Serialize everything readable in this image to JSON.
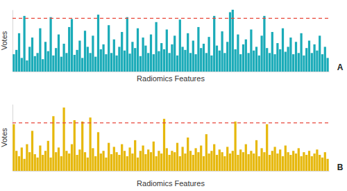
{
  "chart_data": [
    {
      "type": "bar",
      "annotation": "A",
      "xlabel": "Radiomics Features",
      "ylabel": "Votes",
      "color": "#1aabb8",
      "tick_labels": false,
      "threshold": 86,
      "xlim": [
        0.5,
        120.5
      ],
      "ylim": [
        0,
        100
      ],
      "x": [
        1,
        2,
        3,
        4,
        5,
        6,
        7,
        8,
        9,
        10,
        11,
        12,
        13,
        14,
        15,
        16,
        17,
        18,
        19,
        20,
        21,
        22,
        23,
        24,
        25,
        26,
        27,
        28,
        29,
        30,
        31,
        32,
        33,
        34,
        35,
        36,
        37,
        38,
        39,
        40,
        41,
        42,
        43,
        44,
        45,
        46,
        47,
        48,
        49,
        50,
        51,
        52,
        53,
        54,
        55,
        56,
        57,
        58,
        59,
        60,
        61,
        62,
        63,
        64,
        65,
        66,
        67,
        68,
        69,
        70,
        71,
        72,
        73,
        74,
        75,
        76,
        77,
        78,
        79,
        80,
        81,
        82,
        83,
        84,
        85,
        86,
        87,
        88,
        89,
        90,
        91,
        92,
        93,
        94,
        95,
        96,
        97,
        98,
        99,
        100,
        101,
        102,
        103,
        104,
        105,
        106,
        107,
        108,
        109,
        110,
        111,
        112,
        113,
        114,
        115,
        116,
        117,
        118,
        119,
        120
      ],
      "values": [
        28,
        35,
        62,
        22,
        90,
        18,
        40,
        55,
        25,
        30,
        70,
        20,
        48,
        33,
        88,
        26,
        38,
        60,
        24,
        45,
        30,
        72,
        85,
        27,
        35,
        50,
        22,
        66,
        40,
        30,
        58,
        24,
        92,
        36,
        44,
        28,
        75,
        30,
        52,
        26,
        40,
        64,
        34,
        88,
        29,
        48,
        38,
        70,
        25,
        55,
        42,
        30,
        60,
        28,
        80,
        33,
        46,
        36,
        68,
        30,
        44,
        58,
        26,
        84,
        40,
        35,
        62,
        30,
        50,
        28,
        72,
        38,
        45,
        30,
        56,
        26,
        90,
        42,
        34,
        65,
        30,
        48,
        96,
        100,
        36,
        60,
        28,
        44,
        52,
        30,
        68,
        34,
        40,
        26,
        58,
        90,
        38,
        30,
        64,
        28,
        46,
        36,
        70,
        32,
        40,
        55,
        28,
        48,
        30,
        62,
        26,
        38,
        50,
        30,
        44,
        34,
        58,
        28,
        40,
        22
      ]
    },
    {
      "type": "bar",
      "annotation": "B",
      "xlabel": "Radiomics Features",
      "ylabel": "Votes",
      "color": "#e6b80c",
      "tick_labels": false,
      "threshold": 72,
      "xlim": [
        0.5,
        120.5
      ],
      "ylim": [
        0,
        100
      ],
      "x": [
        1,
        2,
        3,
        4,
        5,
        6,
        7,
        8,
        9,
        10,
        11,
        12,
        13,
        14,
        15,
        16,
        17,
        18,
        19,
        20,
        21,
        22,
        23,
        24,
        25,
        26,
        27,
        28,
        29,
        30,
        31,
        32,
        33,
        34,
        35,
        36,
        37,
        38,
        39,
        40,
        41,
        42,
        43,
        44,
        45,
        46,
        47,
        48,
        49,
        50,
        51,
        52,
        53,
        54,
        55,
        56,
        57,
        58,
        59,
        60,
        61,
        62,
        63,
        64,
        65,
        66,
        67,
        68,
        69,
        70,
        71,
        72,
        73,
        74,
        75,
        76,
        77,
        78,
        79,
        80,
        81,
        82,
        83,
        84,
        85,
        86,
        87,
        88,
        89,
        90,
        91,
        92,
        93,
        94,
        95,
        96,
        97,
        98,
        99,
        100,
        101,
        102,
        103,
        104,
        105,
        106,
        107,
        108,
        109,
        110,
        111,
        112,
        113,
        114,
        115,
        116,
        117,
        118,
        119,
        120
      ],
      "values": [
        70,
        30,
        22,
        35,
        18,
        40,
        28,
        60,
        25,
        20,
        38,
        24,
        30,
        45,
        20,
        82,
        28,
        35,
        22,
        95,
        30,
        26,
        40,
        76,
        24,
        32,
        74,
        28,
        20,
        80,
        34,
        22,
        58,
        26,
        30,
        20,
        42,
        25,
        36,
        28,
        24,
        40,
        30,
        22,
        35,
        26,
        46,
        20,
        30,
        38,
        25,
        32,
        28,
        44,
        22,
        30,
        26,
        78,
        34,
        24,
        30,
        28,
        42,
        22,
        36,
        26,
        50,
        30,
        24,
        34,
        28,
        38,
        22,
        55,
        26,
        30,
        40,
        24,
        32,
        28,
        22,
        36,
        26,
        30,
        74,
        24,
        32,
        28,
        40,
        25,
        30,
        26,
        46,
        22,
        34,
        28,
        70,
        24,
        30,
        36,
        26,
        32,
        22,
        38,
        28,
        24,
        30,
        26,
        34,
        22,
        28,
        24,
        30,
        22,
        26,
        32,
        24,
        20,
        28,
        18
      ]
    }
  ]
}
